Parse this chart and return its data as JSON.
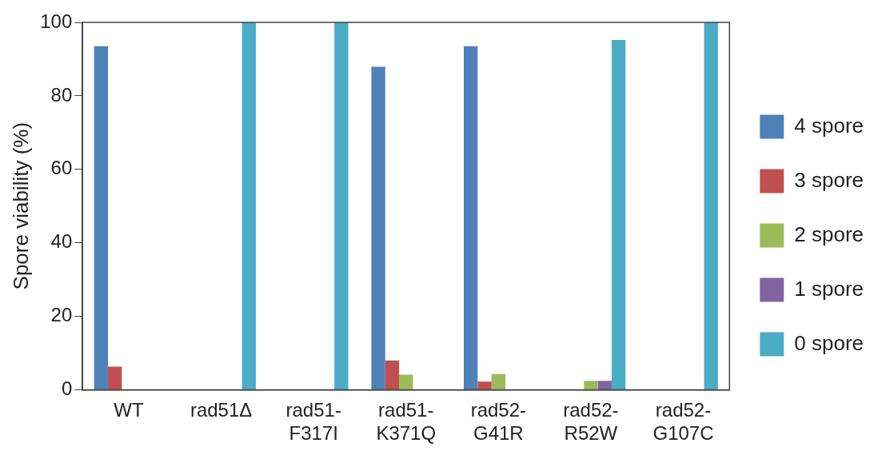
{
  "chart_data": {
    "type": "bar",
    "ylabel": "Spore viability (%)",
    "categories": [
      "WT",
      "rad51Δ",
      "rad51-\nF317I",
      "rad51-\nK371Q",
      "rad52-\nG41R",
      "rad52-\nR52W",
      "rad52-\nG107C"
    ],
    "series": [
      {
        "name": "4 spore",
        "color": "#4f81b9",
        "values": [
          93.5,
          0,
          0,
          87.9,
          93.5,
          0,
          0
        ]
      },
      {
        "name": "3 spore",
        "color": "#c0504d",
        "values": [
          6.3,
          0,
          0,
          8,
          2.2,
          0,
          0
        ]
      },
      {
        "name": "2 spore",
        "color": "#9bbb59",
        "values": [
          0,
          0,
          0,
          4.1,
          4.3,
          2.4,
          0
        ]
      },
      {
        "name": "1 spore",
        "color": "#8064a2",
        "values": [
          0,
          0,
          0,
          0,
          0,
          2.4,
          0
        ]
      },
      {
        "name": "0 spore",
        "color": "#4bacc6",
        "values": [
          0,
          100,
          100,
          0,
          0,
          95.2,
          100
        ]
      }
    ],
    "ylim": [
      0,
      100
    ],
    "yticks": [
      0,
      20,
      40,
      60,
      80,
      100
    ],
    "grid": false,
    "legend": "right"
  }
}
